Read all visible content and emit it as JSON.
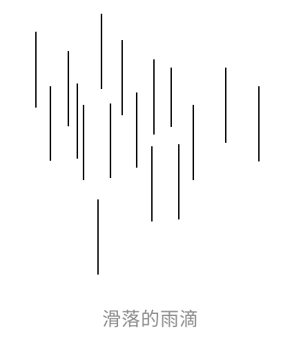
{
  "caption": "滑落的雨滴",
  "colors": {
    "line": "#000000",
    "caption": "#8c8c8c",
    "background": "#ffffff"
  }
}
